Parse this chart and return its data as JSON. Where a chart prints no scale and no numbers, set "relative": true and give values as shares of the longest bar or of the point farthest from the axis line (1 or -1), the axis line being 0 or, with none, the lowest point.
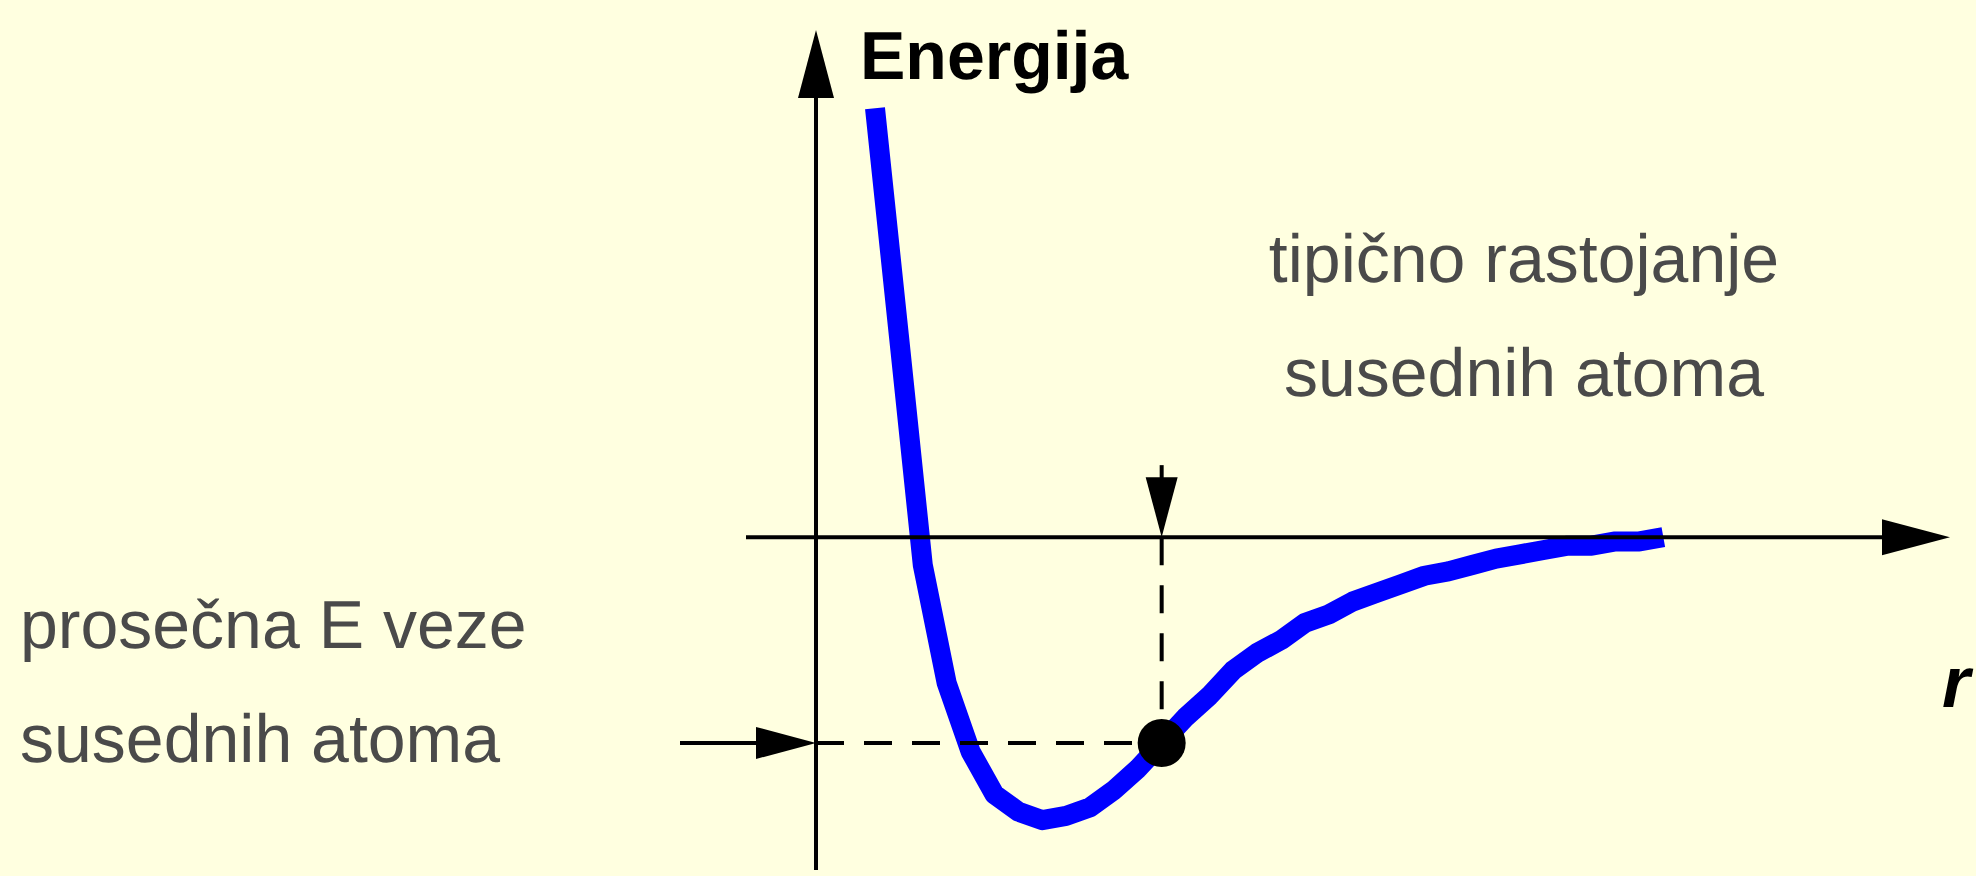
{
  "chart_data": {
    "type": "line",
    "relative": true,
    "xlabel": "r",
    "ylabel": "Energija",
    "marker": "none",
    "line_style": "solid",
    "categories": [
      null,
      null,
      null,
      null,
      null,
      null,
      null,
      null,
      null,
      null,
      null,
      null,
      null,
      null,
      null,
      null,
      null,
      null,
      null,
      null,
      null,
      null,
      null,
      null,
      null,
      null,
      null,
      null,
      null,
      null,
      null,
      null,
      null,
      null
    ],
    "series": [
      {
        "color": "#0000ff",
        "values": [
          1.0,
          0.47,
          -0.065,
          -0.34,
          -0.5,
          -0.6,
          -0.64,
          -0.66,
          -0.65,
          -0.63,
          -0.59,
          -0.54,
          -0.48,
          -0.42,
          -0.37,
          -0.31,
          -0.27,
          -0.24,
          -0.2,
          -0.18,
          -0.15,
          -0.13,
          -0.11,
          -0.09,
          -0.08,
          -0.065,
          -0.05,
          -0.04,
          -0.03,
          -0.02,
          -0.02,
          -0.01,
          -0.01,
          0
        ]
      }
    ],
    "ref_lines": [
      {
        "axis": "y",
        "value": -0.48,
        "color": "#000000",
        "line_style": "dashed"
      }
    ],
    "annotations": [
      "tipično rastojanje susednih atoma",
      "prosečna E veze susednih atoma"
    ]
  }
}
